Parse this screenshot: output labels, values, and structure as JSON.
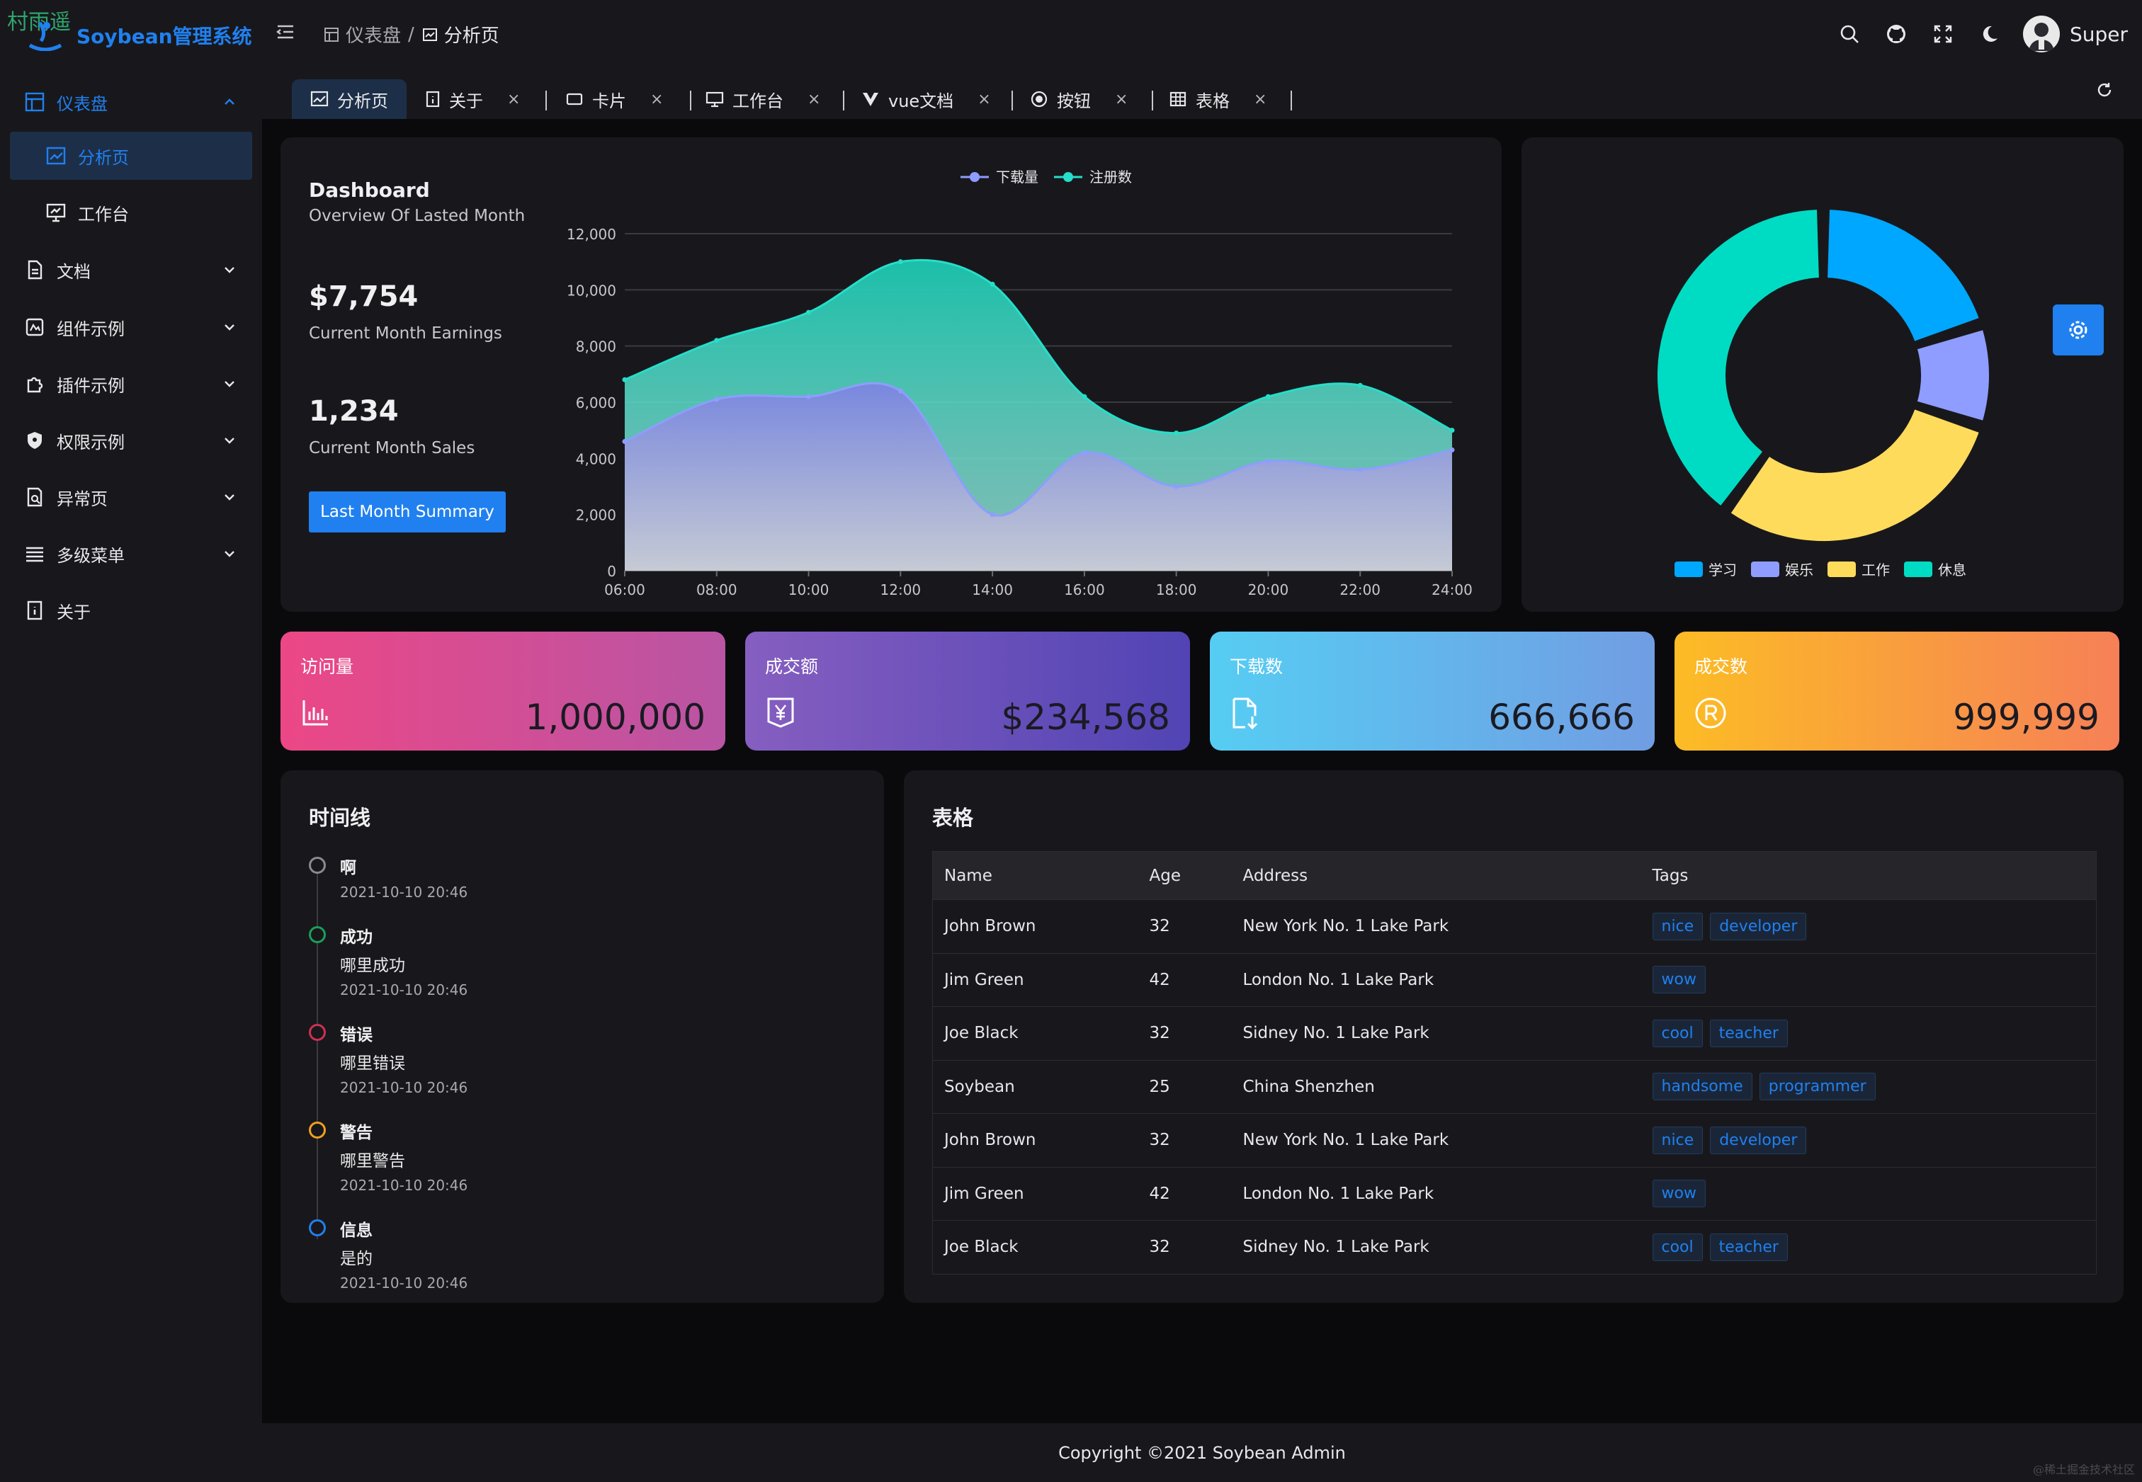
{
  "watermark_top": "村雨遥",
  "watermark_bottom": "@稀土掘金技术社区",
  "header": {
    "app_title": "Soybean管理系统",
    "breadcrumb": [
      "仪表盘",
      "分析页"
    ],
    "user_name": "Super"
  },
  "sidebar": {
    "items": [
      {
        "label": "仪表盘",
        "icon": "dashboard-icon",
        "state": "expanded-active"
      },
      {
        "label": "分析页",
        "icon": "analysis-icon",
        "state": "active-child"
      },
      {
        "label": "工作台",
        "icon": "workbench-icon",
        "state": "child"
      },
      {
        "label": "文档",
        "icon": "document-icon"
      },
      {
        "label": "组件示例",
        "icon": "component-icon"
      },
      {
        "label": "插件示例",
        "icon": "plugin-icon"
      },
      {
        "label": "权限示例",
        "icon": "shield-icon"
      },
      {
        "label": "异常页",
        "icon": "exception-icon"
      },
      {
        "label": "多级菜单",
        "icon": "list-icon"
      },
      {
        "label": "关于",
        "icon": "about-icon"
      }
    ]
  },
  "tabs": [
    {
      "label": "分析页",
      "icon": "analysis-icon",
      "active": true
    },
    {
      "label": "关于",
      "icon": "about-icon"
    },
    {
      "label": "卡片",
      "icon": "card-icon"
    },
    {
      "label": "工作台",
      "icon": "workbench-icon"
    },
    {
      "label": "vue文档",
      "icon": "vue-icon"
    },
    {
      "label": "按钮",
      "icon": "button-icon"
    },
    {
      "label": "表格",
      "icon": "table-icon"
    }
  ],
  "tab_close_glyph": "×",
  "dashboard": {
    "title": "Dashboard",
    "subtitle": "Overview Of Lasted Month",
    "earnings_value": "$7,754",
    "earnings_label": "Current Month Earnings",
    "sales_value": "1,234",
    "sales_label": "Current Month Sales",
    "button_label": "Last Month Summary"
  },
  "chart_data": [
    {
      "type": "area",
      "x": [
        "06:00",
        "08:00",
        "10:00",
        "12:00",
        "14:00",
        "16:00",
        "18:00",
        "20:00",
        "22:00",
        "24:00"
      ],
      "series": [
        {
          "name": "下载量",
          "color": "#8e9dff",
          "values": [
            4600,
            6100,
            6200,
            6400,
            2000,
            4200,
            3000,
            3900,
            3600,
            4300
          ]
        },
        {
          "name": "注册数",
          "color": "#26deca",
          "values": [
            6800,
            8200,
            9200,
            11000,
            10200,
            6200,
            4900,
            6200,
            6600,
            5000
          ]
        }
      ],
      "ylim": [
        0,
        12000
      ],
      "yticks": [
        "0",
        "2,000",
        "4,000",
        "6,000",
        "8,000",
        "10,000",
        "12,000"
      ],
      "legend": "top-center"
    },
    {
      "type": "pie",
      "variant": "donut",
      "categories": [
        "学习",
        "娱乐",
        "工作",
        "休息"
      ],
      "values": [
        20,
        10,
        30,
        40
      ],
      "colors": [
        "#00a7ff",
        "#8e9dff",
        "#ffdb5c",
        "#00dcc4"
      ],
      "legend": "bottom"
    }
  ],
  "stats": [
    {
      "title": "访问量",
      "value": "1,000,000",
      "icon": "bar-chart-icon"
    },
    {
      "title": "成交额",
      "value": "$234,568",
      "icon": "yen-icon"
    },
    {
      "title": "下载数",
      "value": "666,666",
      "icon": "download-file-icon"
    },
    {
      "title": "成交数",
      "value": "999,999",
      "icon": "registered-icon"
    }
  ],
  "timeline": {
    "title": "时间线",
    "items": [
      {
        "title": "啊",
        "content": "",
        "time": "2021-10-10 20:46",
        "color": "#8a8a90"
      },
      {
        "title": "成功",
        "content": "哪里成功",
        "time": "2021-10-10 20:46",
        "color": "#18a058"
      },
      {
        "title": "错误",
        "content": "哪里错误",
        "time": "2021-10-10 20:46",
        "color": "#d03050"
      },
      {
        "title": "警告",
        "content": "哪里警告",
        "time": "2021-10-10 20:46",
        "color": "#f0a020"
      },
      {
        "title": "信息",
        "content": "是的",
        "time": "2021-10-10 20:46",
        "color": "#2080f0"
      }
    ]
  },
  "table": {
    "title": "表格",
    "columns": [
      "Name",
      "Age",
      "Address",
      "Tags"
    ],
    "rows": [
      {
        "name": "John Brown",
        "age": "32",
        "address": "New York No. 1 Lake Park",
        "tags": [
          "nice",
          "developer"
        ]
      },
      {
        "name": "Jim Green",
        "age": "42",
        "address": "London No. 1 Lake Park",
        "tags": [
          "wow"
        ]
      },
      {
        "name": "Joe Black",
        "age": "32",
        "address": "Sidney No. 1 Lake Park",
        "tags": [
          "cool",
          "teacher"
        ]
      },
      {
        "name": "Soybean",
        "age": "25",
        "address": "China Shenzhen",
        "tags": [
          "handsome",
          "programmer"
        ]
      },
      {
        "name": "John Brown",
        "age": "32",
        "address": "New York No. 1 Lake Park",
        "tags": [
          "nice",
          "developer"
        ]
      },
      {
        "name": "Jim Green",
        "age": "42",
        "address": "London No. 1 Lake Park",
        "tags": [
          "wow"
        ]
      },
      {
        "name": "Joe Black",
        "age": "32",
        "address": "Sidney No. 1 Lake Park",
        "tags": [
          "cool",
          "teacher"
        ]
      }
    ]
  },
  "footer": "Copyright ©2021 Soybean Admin",
  "colors": {
    "accent": "#2080f0",
    "bg": "#101014",
    "surface": "#18181c"
  }
}
